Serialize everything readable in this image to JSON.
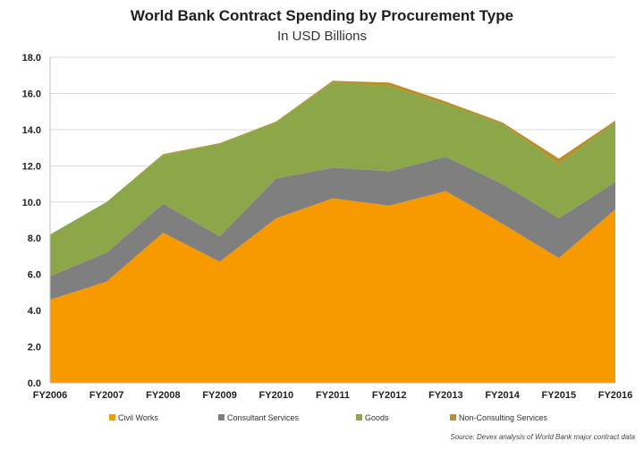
{
  "chart_data": {
    "type": "area",
    "stacked": true,
    "title": "World Bank Contract Spending by Procurement Type",
    "subtitle": "In USD Billions",
    "categories": [
      "FY2006",
      "FY2007",
      "FY2008",
      "FY2009",
      "FY2010",
      "FY2011",
      "FY2012",
      "FY2013",
      "FY2014",
      "FY2015",
      "FY2016"
    ],
    "series": [
      {
        "name": "Civil Works",
        "color": "#F79A00",
        "values": [
          4.6,
          5.6,
          8.3,
          6.7,
          9.1,
          10.2,
          9.8,
          10.6,
          8.8,
          6.9,
          9.6
        ]
      },
      {
        "name": "Consultant Services",
        "color": "#7F7F7F",
        "values": [
          1.3,
          1.6,
          1.6,
          1.4,
          2.2,
          1.7,
          1.9,
          1.9,
          2.2,
          2.2,
          1.5
        ]
      },
      {
        "name": "Goods",
        "color": "#8CA64A",
        "values": [
          2.3,
          2.8,
          2.7,
          5.1,
          3.1,
          4.7,
          4.7,
          2.9,
          3.3,
          3.0,
          3.3
        ]
      },
      {
        "name": "Non-Consulting Services",
        "color": "#B8902A",
        "values": [
          0.0,
          0.0,
          0.05,
          0.05,
          0.05,
          0.1,
          0.2,
          0.15,
          0.1,
          0.3,
          0.1
        ]
      }
    ],
    "ylim": [
      0,
      18
    ],
    "yticks": [
      "0.0",
      "2.0",
      "4.0",
      "6.0",
      "8.0",
      "10.0",
      "12.0",
      "14.0",
      "16.0",
      "18.0"
    ],
    "ytick_values": [
      0,
      2,
      4,
      6,
      8,
      10,
      12,
      14,
      16,
      18
    ],
    "grid": true,
    "legend": "bottom",
    "xlabel": "",
    "ylabel": ""
  },
  "source": "Source: Devex analysis of World Bank major contract data"
}
